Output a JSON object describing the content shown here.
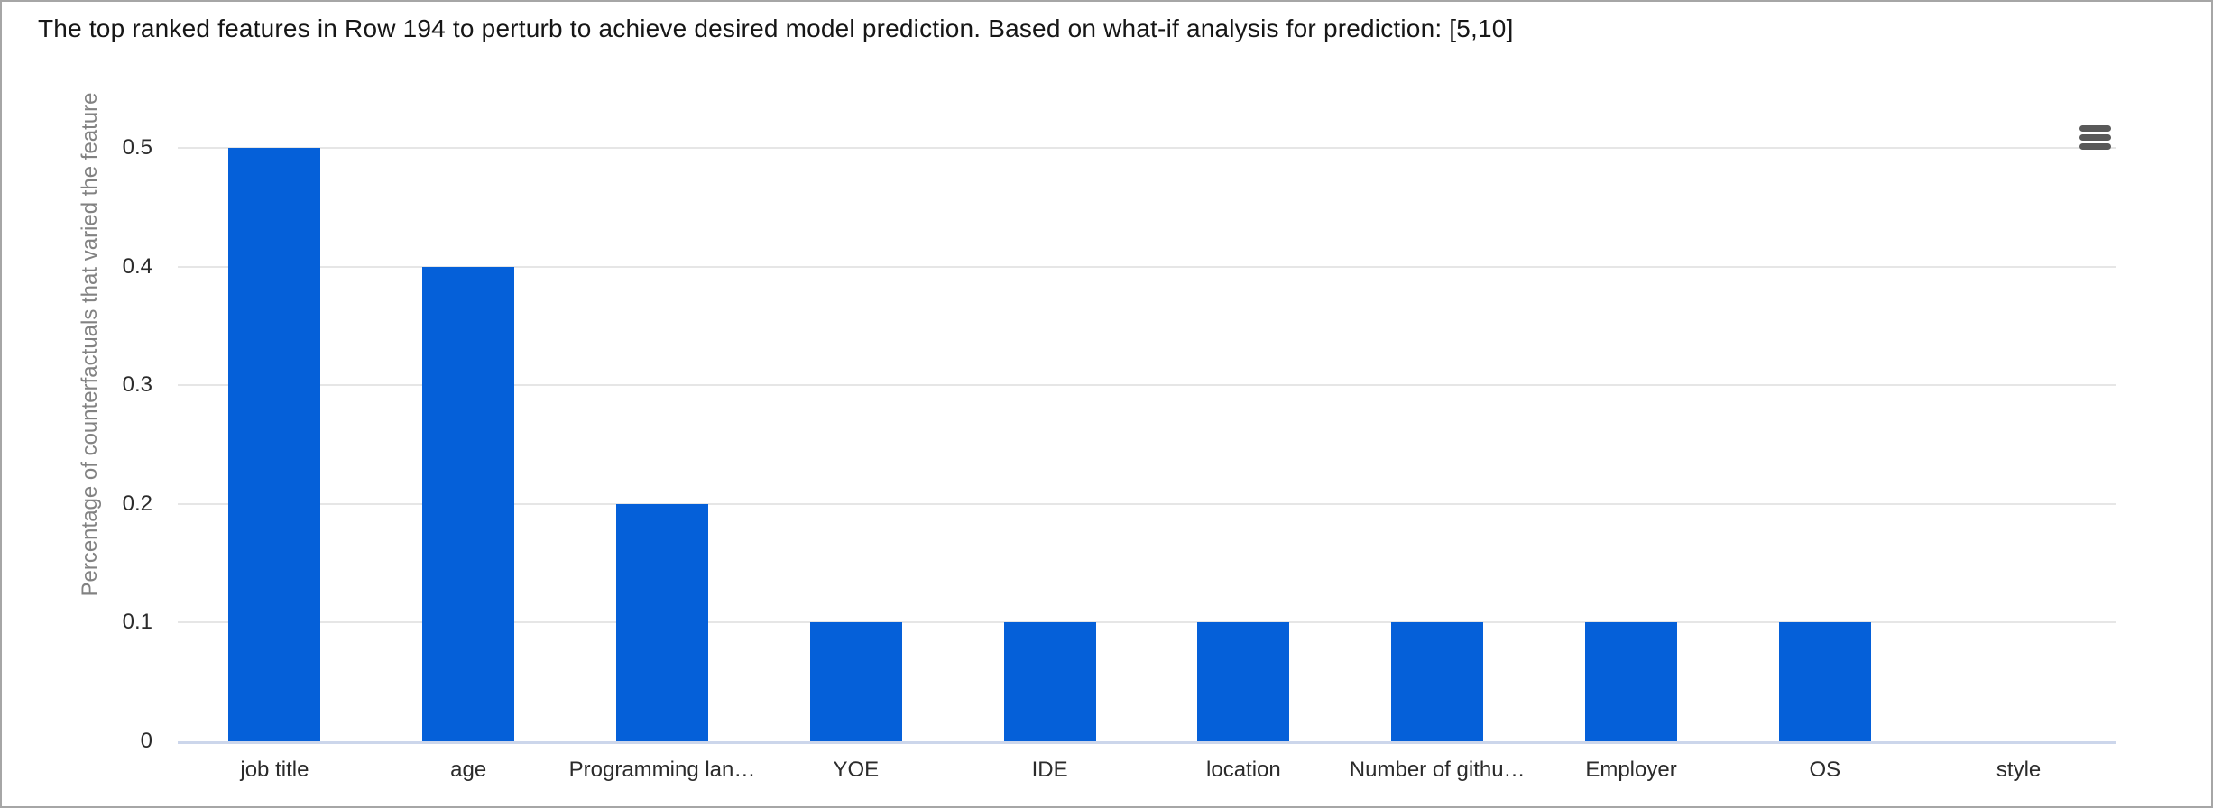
{
  "header": {
    "title": "The top ranked features in Row 194 to perturb to achieve desired model prediction. Based on what-if analysis for prediction: [5,10]"
  },
  "toolbar": {
    "menu_icon": "hamburger-menu"
  },
  "chart_data": {
    "type": "bar",
    "title": "",
    "xlabel": "",
    "ylabel": "Percentage of counterfactuals that varied the feature",
    "categories": [
      "job title",
      "age",
      "Programming lan…",
      "YOE",
      "IDE",
      "location",
      "Number of githu…",
      "Employer",
      "OS",
      "style"
    ],
    "values": [
      0.5,
      0.4,
      0.2,
      0.1,
      0.1,
      0.1,
      0.1,
      0.1,
      0.1,
      0
    ],
    "ylim": [
      0,
      0.5
    ],
    "yticks": [
      0,
      0.1,
      0.2,
      0.3,
      0.4,
      0.5
    ],
    "grid": true,
    "legend": "none",
    "bar_color": "#0560d9",
    "gridline_color": "#e6e6e6",
    "axis_line_color": "#ccd6eb",
    "label_color": "#2b2b2b",
    "axis_title_color": "#828282"
  }
}
